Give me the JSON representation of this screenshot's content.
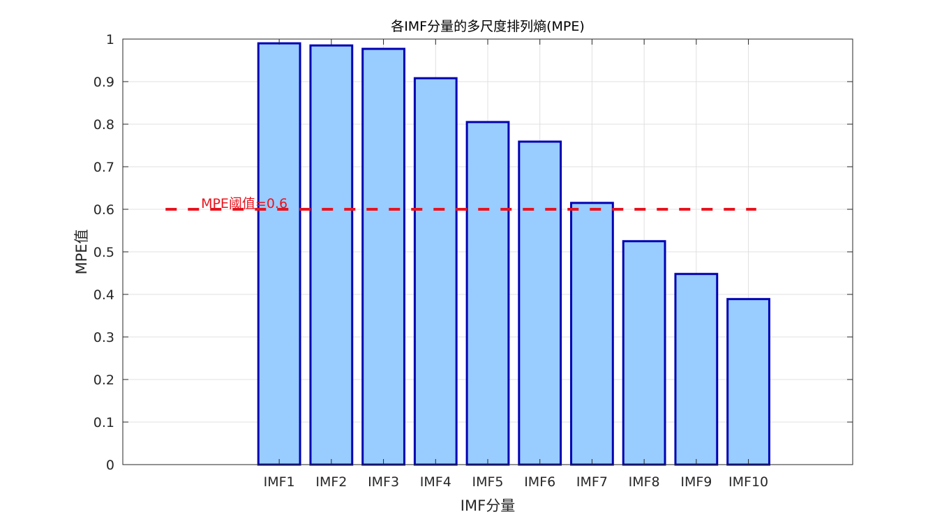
{
  "chart_data": {
    "type": "bar",
    "title": "各IMF分量的多尺度排列熵(MPE)",
    "xlabel": "IMF分量",
    "ylabel": "MPE值",
    "categories": [
      "IMF1",
      "IMF2",
      "IMF3",
      "IMF4",
      "IMF5",
      "IMF6",
      "IMF7",
      "IMF8",
      "IMF9",
      "IMF10"
    ],
    "values": [
      0.99,
      0.985,
      0.977,
      0.908,
      0.805,
      0.759,
      0.615,
      0.525,
      0.448,
      0.389
    ],
    "ylim": [
      0,
      1
    ],
    "yticks": [
      "0",
      "0.1",
      "0.2",
      "0.3",
      "0.4",
      "0.5",
      "0.6",
      "0.7",
      "0.8",
      "0.9",
      "1"
    ],
    "grid": true,
    "colors": {
      "bar_fill": "#99ccff",
      "bar_edge": "#0000b3",
      "threshold": "#e8141e"
    },
    "threshold": {
      "value": 0.6,
      "label": "MPE阈值=0.6",
      "style": "dashed"
    }
  }
}
